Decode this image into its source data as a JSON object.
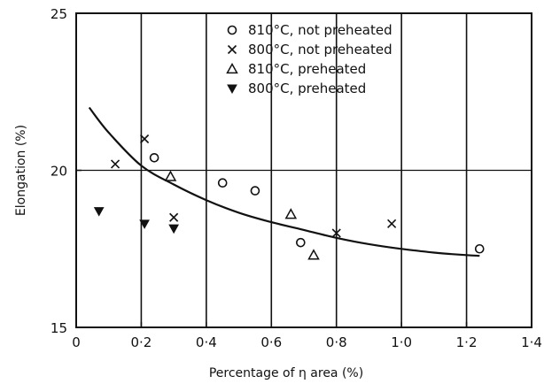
{
  "chart_data": {
    "type": "scatter",
    "title": "",
    "xlabel": "Percentage of η area   (%)",
    "ylabel": "Elongation   (%)",
    "xlim": [
      0,
      1.4
    ],
    "ylim": [
      15,
      25
    ],
    "x_ticks": [
      "0",
      "0·2",
      "0·4",
      "0·6",
      "0·8",
      "1·0",
      "1·2",
      "1·4"
    ],
    "x_tick_values": [
      0,
      0.2,
      0.4,
      0.6,
      0.8,
      1.0,
      1.2,
      1.4
    ],
    "y_ticks": [
      "15",
      "20",
      "25"
    ],
    "y_tick_values": [
      15,
      20,
      25
    ],
    "vertical_grid_at": [
      0.2,
      0.4,
      0.6,
      0.8,
      1.0,
      1.2
    ],
    "horizontal_grid_at": [
      20
    ],
    "legend_placement": "top-right",
    "series": [
      {
        "name": "810°C, not preheated",
        "marker": "circle-open",
        "points": [
          [
            0.24,
            20.4
          ],
          [
            0.45,
            19.6
          ],
          [
            0.55,
            19.35
          ],
          [
            0.69,
            17.7
          ],
          [
            1.24,
            17.5
          ]
        ]
      },
      {
        "name": "800°C, not preheated",
        "marker": "x",
        "points": [
          [
            0.12,
            20.2
          ],
          [
            0.21,
            21.0
          ],
          [
            0.3,
            18.5
          ],
          [
            0.8,
            18.0
          ],
          [
            0.97,
            18.3
          ]
        ]
      },
      {
        "name": "810°C, preheated",
        "marker": "triangle-open",
        "points": [
          [
            0.29,
            19.8
          ],
          [
            0.66,
            18.6
          ],
          [
            0.73,
            17.3
          ]
        ]
      },
      {
        "name": "800°C, preheated",
        "marker": "triangle-down-filled",
        "points": [
          [
            0.07,
            18.7
          ],
          [
            0.21,
            18.3
          ],
          [
            0.3,
            18.15
          ]
        ]
      }
    ],
    "fit_curve": {
      "points": [
        [
          0.04,
          22.0
        ],
        [
          0.1,
          21.2
        ],
        [
          0.2,
          20.15
        ],
        [
          0.3,
          19.55
        ],
        [
          0.4,
          19.05
        ],
        [
          0.5,
          18.65
        ],
        [
          0.6,
          18.35
        ],
        [
          0.7,
          18.1
        ],
        [
          0.8,
          17.85
        ],
        [
          0.9,
          17.65
        ],
        [
          1.0,
          17.5
        ],
        [
          1.1,
          17.38
        ],
        [
          1.2,
          17.3
        ],
        [
          1.24,
          17.28
        ]
      ]
    },
    "colors": {
      "ink": "#111111"
    }
  }
}
